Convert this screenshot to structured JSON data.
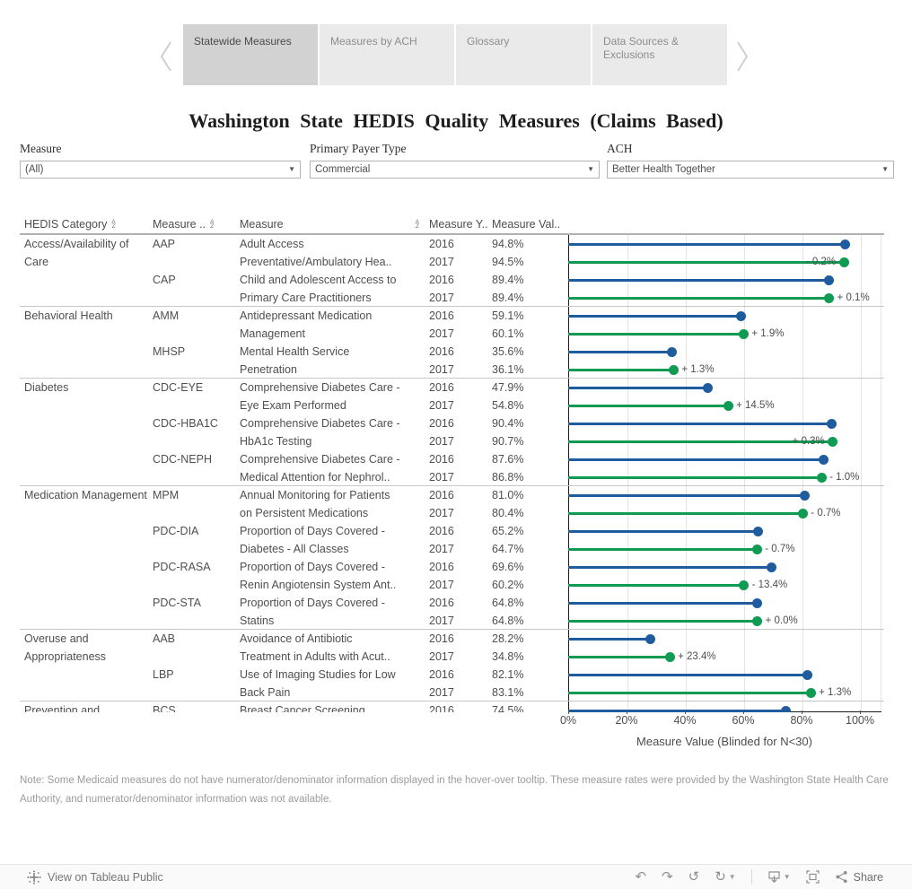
{
  "tabs": {
    "items": [
      {
        "label": "Statewide Measures",
        "active": true
      },
      {
        "label": "Measures by ACH",
        "active": false
      },
      {
        "label": "Glossary",
        "active": false
      },
      {
        "label": "Data Sources & Exclusions",
        "active": false
      }
    ]
  },
  "title": "Washington State HEDIS Quality Measures (Claims Based)",
  "filters": [
    {
      "label": "Measure",
      "value": "(All)"
    },
    {
      "label": "Primary Payer Type",
      "value": "Commercial"
    },
    {
      "label": "ACH",
      "value": "Better Health Together"
    }
  ],
  "table": {
    "headers": [
      {
        "label": "HEDIS Category"
      },
      {
        "label": "Measure .."
      },
      {
        "label": "Measure"
      },
      {
        "label": "Measure Y.."
      },
      {
        "label": "Measure Val.."
      }
    ],
    "sort_icon_letters": [
      "A",
      "Z"
    ]
  },
  "chart_data": {
    "type": "bar",
    "subtype": "horizontal-lollipop",
    "title": "Washington State HEDIS Quality Measures (Claims Based)",
    "xlabel": "Measure Value (Blinded for N<30)",
    "xlim": [
      0,
      100
    ],
    "x_ticks": [
      "0%",
      "20%",
      "40%",
      "60%",
      "80%",
      "100%"
    ],
    "grid": true,
    "series_colors": {
      "y2016": "#1e5c9e",
      "y2017": "#0f9b51"
    },
    "groups": [
      {
        "category": "Access/Availability of Care",
        "measures": [
          {
            "code": "AAP",
            "name_lines": [
              "Adult Access",
              "Preventative/Ambulatory Hea.."
            ],
            "values": {
              "y2016": 94.8,
              "y2017": 94.5
            },
            "value_labels": {
              "y2016": "94.8%",
              "y2017": "94.5%"
            },
            "delta": "- 0.2%",
            "delta_side": "left"
          },
          {
            "code": "CAP",
            "name_lines": [
              "Child and Adolescent Access to",
              "Primary Care Practitioners"
            ],
            "values": {
              "y2016": 89.4,
              "y2017": 89.4
            },
            "value_labels": {
              "y2016": "89.4%",
              "y2017": "89.4%"
            },
            "delta": "+ 0.1%",
            "delta_side": "right"
          }
        ]
      },
      {
        "category": "Behavioral Health",
        "measures": [
          {
            "code": "AMM",
            "name_lines": [
              "Antidepressant Medication",
              "Management"
            ],
            "values": {
              "y2016": 59.1,
              "y2017": 60.1
            },
            "value_labels": {
              "y2016": "59.1%",
              "y2017": "60.1%"
            },
            "delta": "+ 1.9%",
            "delta_side": "right"
          },
          {
            "code": "MHSP",
            "name_lines": [
              "Mental Health Service",
              "Penetration"
            ],
            "values": {
              "y2016": 35.6,
              "y2017": 36.1
            },
            "value_labels": {
              "y2016": "35.6%",
              "y2017": "36.1%"
            },
            "delta": "+ 1.3%",
            "delta_side": "right"
          }
        ]
      },
      {
        "category": "Diabetes",
        "measures": [
          {
            "code": "CDC-EYE",
            "name_lines": [
              "Comprehensive Diabetes Care -",
              "Eye Exam Performed"
            ],
            "values": {
              "y2016": 47.9,
              "y2017": 54.8
            },
            "value_labels": {
              "y2016": "47.9%",
              "y2017": "54.8%"
            },
            "delta": "+ 14.5%",
            "delta_side": "right"
          },
          {
            "code": "CDC-HBA1C",
            "name_lines": [
              "Comprehensive Diabetes Care -",
              "HbA1c Testing"
            ],
            "values": {
              "y2016": 90.4,
              "y2017": 90.7
            },
            "value_labels": {
              "y2016": "90.4%",
              "y2017": "90.7%"
            },
            "delta": "+ 0.3%",
            "delta_side": "left"
          },
          {
            "code": "CDC-NEPH",
            "name_lines": [
              "Comprehensive Diabetes Care -",
              "Medical Attention for Nephrol.."
            ],
            "values": {
              "y2016": 87.6,
              "y2017": 86.8
            },
            "value_labels": {
              "y2016": "87.6%",
              "y2017": "86.8%"
            },
            "delta": "- 1.0%",
            "delta_side": "right"
          }
        ]
      },
      {
        "category": "Medication Management",
        "measures": [
          {
            "code": "MPM",
            "name_lines": [
              "Annual Monitoring for Patients",
              "on Persistent Medications"
            ],
            "values": {
              "y2016": 81.0,
              "y2017": 80.4
            },
            "value_labels": {
              "y2016": "81.0%",
              "y2017": "80.4%"
            },
            "delta": "- 0.7%",
            "delta_side": "right"
          },
          {
            "code": "PDC-DIA",
            "name_lines": [
              "Proportion of Days Covered -",
              "Diabetes - All Classes"
            ],
            "values": {
              "y2016": 65.2,
              "y2017": 64.7
            },
            "value_labels": {
              "y2016": "65.2%",
              "y2017": "64.7%"
            },
            "delta": "- 0.7%",
            "delta_side": "right"
          },
          {
            "code": "PDC-RASA",
            "name_lines": [
              "Proportion of Days Covered -",
              "Renin Angiotensin System Ant.."
            ],
            "values": {
              "y2016": 69.6,
              "y2017": 60.2
            },
            "value_labels": {
              "y2016": "69.6%",
              "y2017": "60.2%"
            },
            "delta": "- 13.4%",
            "delta_side": "right"
          },
          {
            "code": "PDC-STA",
            "name_lines": [
              "Proportion of Days Covered -",
              "Statins"
            ],
            "values": {
              "y2016": 64.8,
              "y2017": 64.8
            },
            "value_labels": {
              "y2016": "64.8%",
              "y2017": "64.8%"
            },
            "delta": "+ 0.0%",
            "delta_side": "right"
          }
        ]
      },
      {
        "category": "Overuse and Appropriateness",
        "measures": [
          {
            "code": "AAB",
            "name_lines": [
              "Avoidance of Antibiotic",
              "Treatment in Adults with Acut.."
            ],
            "values": {
              "y2016": 28.2,
              "y2017": 34.8
            },
            "value_labels": {
              "y2016": "28.2%",
              "y2017": "34.8%"
            },
            "delta": "+ 23.4%",
            "delta_side": "right"
          },
          {
            "code": "LBP",
            "name_lines": [
              "Use of Imaging Studies for Low",
              "Back Pain"
            ],
            "values": {
              "y2016": 82.1,
              "y2017": 83.1
            },
            "value_labels": {
              "y2016": "82.1%",
              "y2017": "83.1%"
            },
            "delta": "+ 1.3%",
            "delta_side": "right"
          }
        ]
      },
      {
        "category": "Prevention and",
        "clipped": true,
        "measures": [
          {
            "code": "BCS",
            "name_lines": [
              "Breast Cancer Screening"
            ],
            "values": {
              "y2016": 74.5,
              "y2017": null
            },
            "value_labels": {
              "y2016": "74.5%",
              "y2017": null
            },
            "delta": null,
            "delta_side": null
          }
        ]
      }
    ]
  },
  "note": "Note: Some Medicaid measures do not have numerator/denominator information displayed in the hover-over tooltip. These measure rates were provided by the Washington State Health Care Authority, and numerator/denominator information was not available.",
  "toolbar": {
    "view_label": "View on Tableau Public",
    "share_label": "Share",
    "icons": [
      "tableau-logo-icon",
      "undo-icon",
      "redo-icon",
      "revert-icon",
      "refresh-icon",
      "download-icon",
      "fullscreen-icon",
      "share-icon"
    ]
  }
}
